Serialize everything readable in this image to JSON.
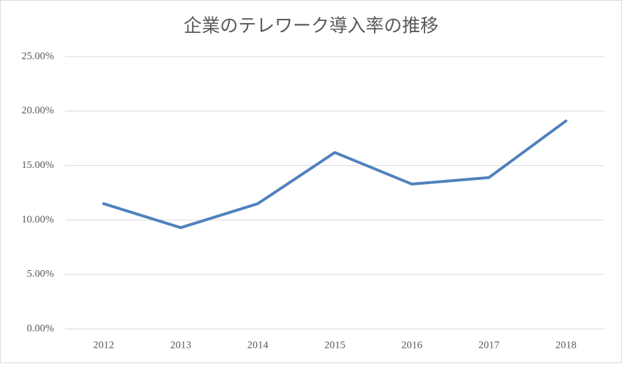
{
  "chart_data": {
    "type": "line",
    "title": "企業のテレワーク導入率の推移",
    "categories": [
      "2012",
      "2013",
      "2014",
      "2015",
      "2016",
      "2017",
      "2018"
    ],
    "series": [
      {
        "color": "#4f81bd",
        "values": [
          11.5,
          9.3,
          11.5,
          16.2,
          13.3,
          13.9,
          19.1
        ]
      }
    ],
    "ylim": [
      0,
      25
    ],
    "yticks": [
      {
        "value": 0,
        "label": "0.00%"
      },
      {
        "value": 5,
        "label": "5.00%"
      },
      {
        "value": 10,
        "label": "10.00%"
      },
      {
        "value": 15,
        "label": "15.00%"
      },
      {
        "value": 20,
        "label": "20.00%"
      },
      {
        "value": 25,
        "label": "25.00%"
      }
    ],
    "grid": true
  }
}
